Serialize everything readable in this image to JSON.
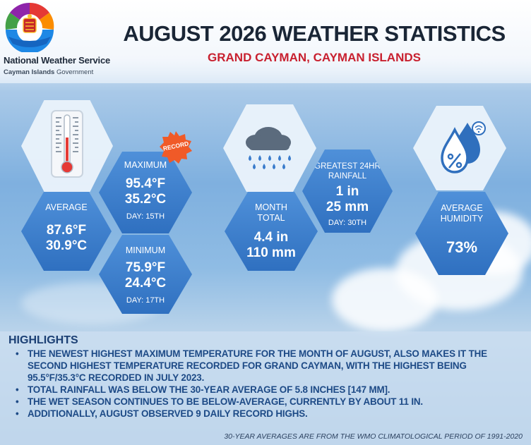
{
  "header": {
    "org_name": "National Weather Service",
    "org_sub_bold": "Cayman Islands",
    "org_sub_rest": " Government",
    "title": "AUGUST 2026 WEATHER STATISTICS",
    "subtitle": "GRAND CAYMAN, CAYMAN ISLANDS"
  },
  "temperature": {
    "average": {
      "label": "AVERAGE",
      "f": "87.6°F",
      "c": "30.9°C"
    },
    "maximum": {
      "label": "MAXIMUM",
      "f": "95.4°F",
      "c": "35.2°C",
      "day": "DAY: 15TH",
      "badge": "RECORD"
    },
    "minimum": {
      "label": "MINIMUM",
      "f": "75.9°F",
      "c": "24.4°C",
      "day": "DAY: 17TH"
    }
  },
  "rainfall": {
    "month_total": {
      "label_1": "MONTH",
      "label_2": "TOTAL",
      "in": "4.4 in",
      "mm": "110 mm"
    },
    "greatest": {
      "label_1": "GREATEST 24HR",
      "label_2": "RAINFALL",
      "in": "1 in",
      "mm": "25 mm",
      "day": "DAY: 30TH"
    }
  },
  "humidity": {
    "label_1": "AVERAGE",
    "label_2": "HUMIDITY",
    "value": "73%"
  },
  "highlights": {
    "title": "HIGHLIGHTS",
    "items": [
      "The newest highest maximum temperature for the month of August, also makes it the second highest temperature recorded for Grand Cayman, with the highest being 95.5°F/35.3°C recorded in July 2023.",
      "Total rainfall was below the 30-year average of 5.8 inches [147 mm].",
      "The wet season continues to be below-average, currently by about 11 in.",
      "Additionally, August observed 9 daily record highs."
    ],
    "footnote": "30-YEAR AVERAGES ARE FROM THE WMO CLIMATOLOGICAL PERIOD OF 1991-2020"
  },
  "colors": {
    "title": "#1a2636",
    "subtitle": "#c8202f",
    "hex_blue": "#3a7ccc",
    "record_badge": "#f05a28",
    "highlight_text": "#1d4a86"
  },
  "icons": [
    "logo-emblem",
    "thermometer-icon",
    "rain-cloud-icon",
    "humidity-drops-icon",
    "record-badge-icon"
  ]
}
